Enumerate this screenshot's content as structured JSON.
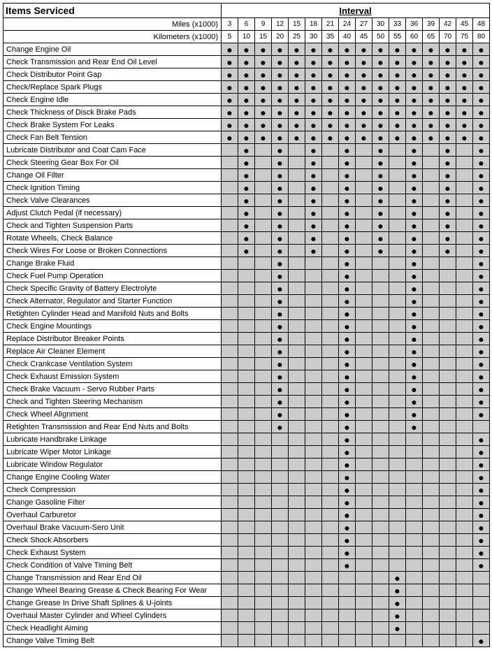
{
  "headers": {
    "items_title": "Items Serviced",
    "interval_title": "Interval",
    "miles_label": "Miles (x1000)",
    "km_label": "Kilometers (x1000)",
    "miles": [
      "3",
      "6",
      "9",
      "12",
      "15",
      "18",
      "21",
      "24",
      "27",
      "30",
      "33",
      "36",
      "39",
      "42",
      "45",
      "48"
    ],
    "km": [
      "5",
      "10",
      "15",
      "20",
      "25",
      "30",
      "35",
      "40",
      "45",
      "50",
      "55",
      "60",
      "65",
      "70",
      "75",
      "80"
    ]
  },
  "colors": {
    "filled_bg": "#cccccc",
    "empty_bg": "#ffffff",
    "border": "#000000",
    "dot": "#000000"
  },
  "dot_glyph": "●",
  "rows": [
    {
      "name": "Change Engine Oil",
      "dots": [
        1,
        1,
        1,
        1,
        1,
        1,
        1,
        1,
        1,
        1,
        1,
        1,
        1,
        1,
        1,
        1
      ]
    },
    {
      "name": "Check Transmission and Rear End Oil Level",
      "dots": [
        1,
        1,
        1,
        1,
        1,
        1,
        1,
        1,
        1,
        1,
        1,
        1,
        1,
        1,
        1,
        1
      ]
    },
    {
      "name": "Check Distributor Point Gap",
      "dots": [
        1,
        1,
        1,
        1,
        1,
        1,
        1,
        1,
        1,
        1,
        1,
        1,
        1,
        1,
        1,
        1
      ]
    },
    {
      "name": "Check/Replace Spark Plugs",
      "dots": [
        1,
        1,
        1,
        1,
        1,
        1,
        1,
        1,
        1,
        1,
        1,
        1,
        1,
        1,
        1,
        1
      ]
    },
    {
      "name": "Check Engine Idle",
      "dots": [
        1,
        1,
        1,
        1,
        1,
        1,
        1,
        1,
        1,
        1,
        1,
        1,
        1,
        1,
        1,
        1
      ]
    },
    {
      "name": "Check Thickness of Disck Brake Pads",
      "dots": [
        1,
        1,
        1,
        1,
        1,
        1,
        1,
        1,
        1,
        1,
        1,
        1,
        1,
        1,
        1,
        1
      ]
    },
    {
      "name": "Check Brake System For Leaks",
      "dots": [
        1,
        1,
        1,
        1,
        1,
        1,
        1,
        1,
        1,
        1,
        1,
        1,
        1,
        1,
        1,
        1
      ]
    },
    {
      "name": "Check Fan Belt Tension",
      "dots": [
        1,
        1,
        1,
        1,
        1,
        1,
        1,
        1,
        1,
        1,
        1,
        1,
        1,
        1,
        1,
        1
      ]
    },
    {
      "name": "Lubricate Distributor and Coat Cam Face",
      "dots": [
        0,
        1,
        0,
        1,
        0,
        1,
        0,
        1,
        0,
        1,
        0,
        1,
        0,
        1,
        0,
        1
      ]
    },
    {
      "name": "Check Steering Gear Box For Oil",
      "dots": [
        0,
        1,
        0,
        1,
        0,
        1,
        0,
        1,
        0,
        1,
        0,
        1,
        0,
        1,
        0,
        1
      ]
    },
    {
      "name": "Change Oil Filter",
      "dots": [
        0,
        1,
        0,
        1,
        0,
        1,
        0,
        1,
        0,
        1,
        0,
        1,
        0,
        1,
        0,
        1
      ]
    },
    {
      "name": "Check Ignition Timing",
      "dots": [
        0,
        1,
        0,
        1,
        0,
        1,
        0,
        1,
        0,
        1,
        0,
        1,
        0,
        1,
        0,
        1
      ]
    },
    {
      "name": "Check Valve Clearances",
      "dots": [
        0,
        1,
        0,
        1,
        0,
        1,
        0,
        1,
        0,
        1,
        0,
        1,
        0,
        1,
        0,
        1
      ]
    },
    {
      "name": "Adjust Clutch Pedal (if necessary)",
      "dots": [
        0,
        1,
        0,
        1,
        0,
        1,
        0,
        1,
        0,
        1,
        0,
        1,
        0,
        1,
        0,
        1
      ]
    },
    {
      "name": "Check and Tighten Suspension Parts",
      "dots": [
        0,
        1,
        0,
        1,
        0,
        1,
        0,
        1,
        0,
        1,
        0,
        1,
        0,
        1,
        0,
        1
      ]
    },
    {
      "name": "Rotate Wheels, Check Balance",
      "dots": [
        0,
        1,
        0,
        1,
        0,
        1,
        0,
        1,
        0,
        1,
        0,
        1,
        0,
        1,
        0,
        1
      ]
    },
    {
      "name": "Check Wires For Loose or Broken Connections",
      "dots": [
        0,
        1,
        0,
        1,
        0,
        1,
        0,
        1,
        0,
        1,
        0,
        1,
        0,
        1,
        0,
        1
      ]
    },
    {
      "name": "Change Brake Fluid",
      "dots": [
        0,
        0,
        0,
        1,
        0,
        0,
        0,
        1,
        0,
        0,
        0,
        1,
        0,
        0,
        0,
        1
      ]
    },
    {
      "name": "Check Fuel Pump Operation",
      "dots": [
        0,
        0,
        0,
        1,
        0,
        0,
        0,
        1,
        0,
        0,
        0,
        1,
        0,
        0,
        0,
        1
      ]
    },
    {
      "name": "Check Specific Gravity of Battery Electrolyte",
      "dots": [
        0,
        0,
        0,
        1,
        0,
        0,
        0,
        1,
        0,
        0,
        0,
        1,
        0,
        0,
        0,
        1
      ]
    },
    {
      "name": "Check Alternator, Regulator and Starter Function",
      "dots": [
        0,
        0,
        0,
        1,
        0,
        0,
        0,
        1,
        0,
        0,
        0,
        1,
        0,
        0,
        0,
        1
      ]
    },
    {
      "name": "Retighten Cylinder Head and Manifold Nuts and Bolts",
      "dots": [
        0,
        0,
        0,
        1,
        0,
        0,
        0,
        1,
        0,
        0,
        0,
        1,
        0,
        0,
        0,
        1
      ]
    },
    {
      "name": "Check Engine Mountings",
      "dots": [
        0,
        0,
        0,
        1,
        0,
        0,
        0,
        1,
        0,
        0,
        0,
        1,
        0,
        0,
        0,
        1
      ]
    },
    {
      "name": "Replace Distributor Breaker Points",
      "dots": [
        0,
        0,
        0,
        1,
        0,
        0,
        0,
        1,
        0,
        0,
        0,
        1,
        0,
        0,
        0,
        1
      ]
    },
    {
      "name": "Replace Air Cleaner Element",
      "dots": [
        0,
        0,
        0,
        1,
        0,
        0,
        0,
        1,
        0,
        0,
        0,
        1,
        0,
        0,
        0,
        1
      ]
    },
    {
      "name": "Check Crankcase Ventilation System",
      "dots": [
        0,
        0,
        0,
        1,
        0,
        0,
        0,
        1,
        0,
        0,
        0,
        1,
        0,
        0,
        0,
        1
      ]
    },
    {
      "name": "Check Exhaust Emission System",
      "dots": [
        0,
        0,
        0,
        1,
        0,
        0,
        0,
        1,
        0,
        0,
        0,
        1,
        0,
        0,
        0,
        1
      ]
    },
    {
      "name": "Check Brake Vacuum - Servo Rubber Parts",
      "dots": [
        0,
        0,
        0,
        1,
        0,
        0,
        0,
        1,
        0,
        0,
        0,
        1,
        0,
        0,
        0,
        1
      ]
    },
    {
      "name": "Check and Tighten Steering Mechanism",
      "dots": [
        0,
        0,
        0,
        1,
        0,
        0,
        0,
        1,
        0,
        0,
        0,
        1,
        0,
        0,
        0,
        1
      ]
    },
    {
      "name": "Check Wheel Alignment",
      "dots": [
        0,
        0,
        0,
        1,
        0,
        0,
        0,
        1,
        0,
        0,
        0,
        1,
        0,
        0,
        0,
        1
      ]
    },
    {
      "name": "Retighten Transmission and Rear End Nuts and Bolts",
      "dots": [
        0,
        0,
        0,
        1,
        0,
        0,
        0,
        1,
        0,
        0,
        0,
        1,
        0,
        0,
        0,
        0
      ]
    },
    {
      "name": "Lubricate Handbrake Linkage",
      "dots": [
        0,
        0,
        0,
        0,
        0,
        0,
        0,
        1,
        0,
        0,
        0,
        0,
        0,
        0,
        0,
        1
      ]
    },
    {
      "name": "Lubricate Wiper Motor Linkage",
      "dots": [
        0,
        0,
        0,
        0,
        0,
        0,
        0,
        1,
        0,
        0,
        0,
        0,
        0,
        0,
        0,
        1
      ]
    },
    {
      "name": "Lubricate Window Regulator",
      "dots": [
        0,
        0,
        0,
        0,
        0,
        0,
        0,
        1,
        0,
        0,
        0,
        0,
        0,
        0,
        0,
        1
      ]
    },
    {
      "name": "Change Engine Cooling Water",
      "dots": [
        0,
        0,
        0,
        0,
        0,
        0,
        0,
        1,
        0,
        0,
        0,
        0,
        0,
        0,
        0,
        1
      ]
    },
    {
      "name": "Check Compression",
      "dots": [
        0,
        0,
        0,
        0,
        0,
        0,
        0,
        1,
        0,
        0,
        0,
        0,
        0,
        0,
        0,
        1
      ]
    },
    {
      "name": "Change Gasoline Filter",
      "dots": [
        0,
        0,
        0,
        0,
        0,
        0,
        0,
        1,
        0,
        0,
        0,
        0,
        0,
        0,
        0,
        1
      ]
    },
    {
      "name": "Overhaul Carburetor",
      "dots": [
        0,
        0,
        0,
        0,
        0,
        0,
        0,
        1,
        0,
        0,
        0,
        0,
        0,
        0,
        0,
        1
      ]
    },
    {
      "name": "Overhaul Brake Vacuum-Sero Unit",
      "dots": [
        0,
        0,
        0,
        0,
        0,
        0,
        0,
        1,
        0,
        0,
        0,
        0,
        0,
        0,
        0,
        1
      ]
    },
    {
      "name": "Check Shock Absorbers",
      "dots": [
        0,
        0,
        0,
        0,
        0,
        0,
        0,
        1,
        0,
        0,
        0,
        0,
        0,
        0,
        0,
        1
      ]
    },
    {
      "name": "Check Exhaust System",
      "dots": [
        0,
        0,
        0,
        0,
        0,
        0,
        0,
        1,
        0,
        0,
        0,
        0,
        0,
        0,
        0,
        1
      ]
    },
    {
      "name": "Check Condition of Valve Timing Belt",
      "dots": [
        0,
        0,
        0,
        0,
        0,
        0,
        0,
        1,
        0,
        0,
        0,
        0,
        0,
        0,
        0,
        1
      ]
    },
    {
      "name": "Change Transmission and Rear End Oil",
      "dots": [
        0,
        0,
        0,
        0,
        0,
        0,
        0,
        0,
        0,
        0,
        1,
        0,
        0,
        0,
        0,
        0
      ]
    },
    {
      "name": "Change Wheel Bearing Grease & Check Bearing For Wear",
      "dots": [
        0,
        0,
        0,
        0,
        0,
        0,
        0,
        0,
        0,
        0,
        1,
        0,
        0,
        0,
        0,
        0
      ]
    },
    {
      "name": "Change Grease In Drive Shaft Splines & U-joints",
      "dots": [
        0,
        0,
        0,
        0,
        0,
        0,
        0,
        0,
        0,
        0,
        1,
        0,
        0,
        0,
        0,
        0
      ]
    },
    {
      "name": "Overhaul Master Cylinder and Wheel Cylinders",
      "dots": [
        0,
        0,
        0,
        0,
        0,
        0,
        0,
        0,
        0,
        0,
        1,
        0,
        0,
        0,
        0,
        0
      ]
    },
    {
      "name": "Check Headlight Aiming",
      "dots": [
        0,
        0,
        0,
        0,
        0,
        0,
        0,
        0,
        0,
        0,
        1,
        0,
        0,
        0,
        0,
        0
      ]
    },
    {
      "name": "Change Valve Timing Belt",
      "dots": [
        0,
        0,
        0,
        0,
        0,
        0,
        0,
        0,
        0,
        0,
        0,
        0,
        0,
        0,
        0,
        1
      ]
    }
  ]
}
